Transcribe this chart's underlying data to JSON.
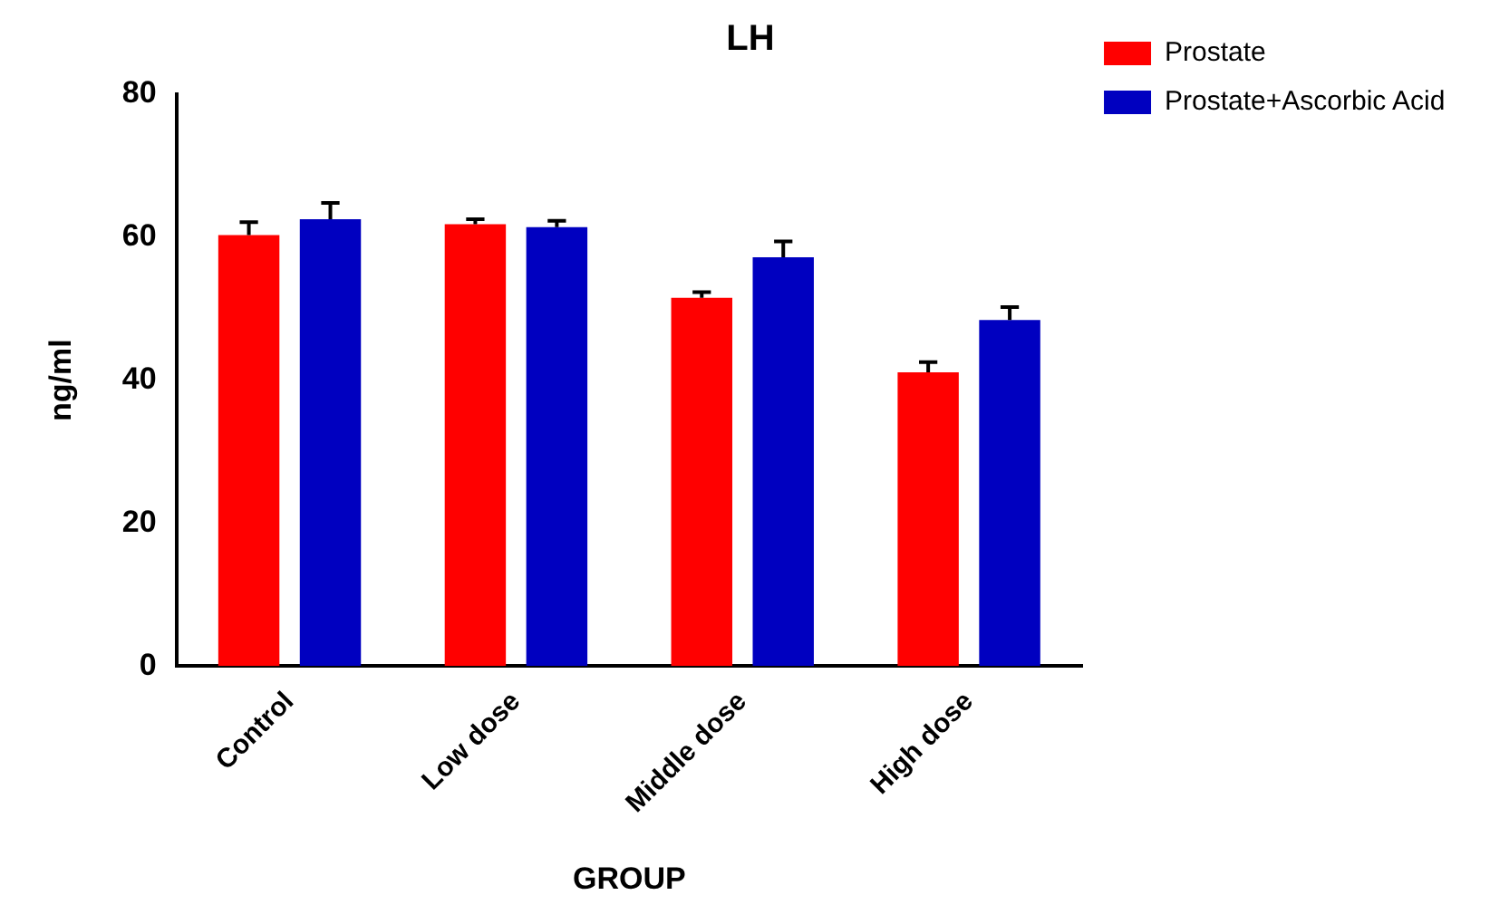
{
  "chart_data": {
    "type": "bar",
    "title": "LH",
    "xlabel": "GROUP",
    "ylabel": "ng/ml",
    "categories": [
      "Control",
      "Low dose",
      "Middle dose",
      "High dose"
    ],
    "series": [
      {
        "name": "Prostate",
        "color": "#ff0000",
        "values": [
          60.3,
          61.8,
          51.5,
          41.1
        ],
        "errors": [
          [
            60.3,
            62.1
          ],
          [
            61.8,
            62.5
          ],
          [
            51.5,
            52.3
          ],
          [
            41.1,
            42.5
          ]
        ]
      },
      {
        "name": "Prostate+Ascorbic Acid",
        "color": "#0000c0",
        "values": [
          62.5,
          61.4,
          57.2,
          48.4
        ],
        "errors": [
          [
            62.5,
            64.8
          ],
          [
            61.4,
            62.3
          ],
          [
            57.2,
            59.4
          ],
          [
            48.4,
            50.2
          ]
        ]
      }
    ],
    "ylim": [
      0,
      80
    ],
    "yticks": [
      0,
      20,
      40,
      60,
      80
    ],
    "grid": false,
    "legend": "top right"
  }
}
